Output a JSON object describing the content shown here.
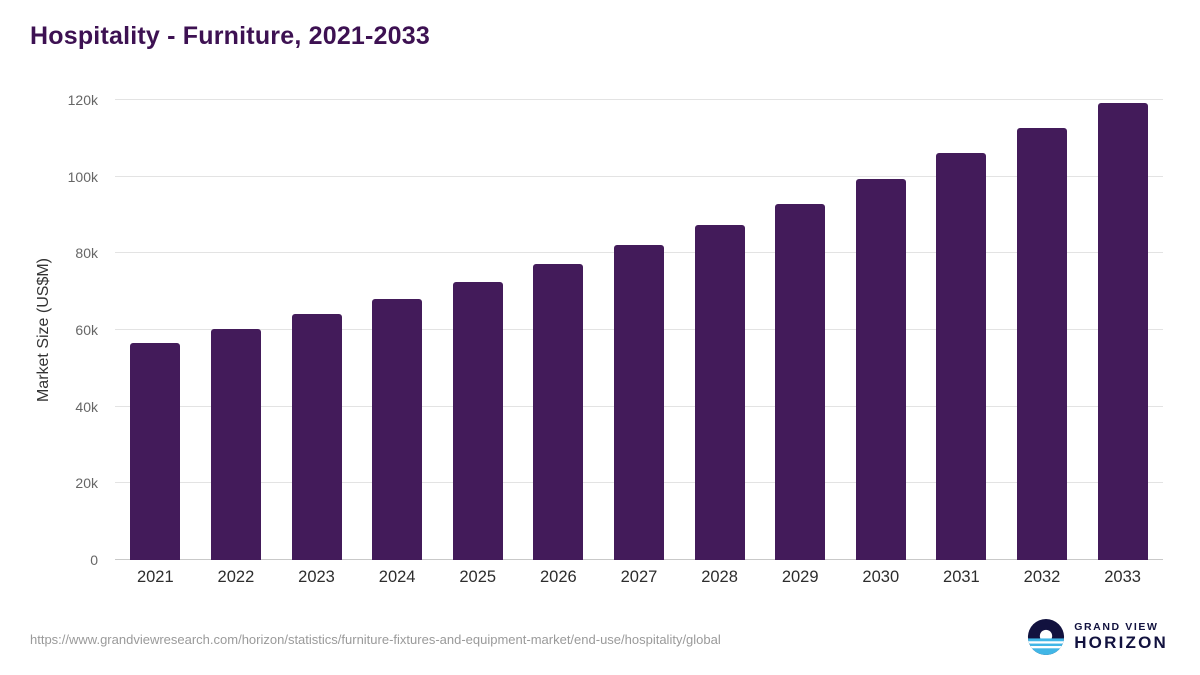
{
  "title": "Hospitality - Furniture, 2021-2033",
  "footer": {
    "source_url": "https://www.grandviewresearch.com/horizon/statistics/furniture-fixtures-and-equipment-market/end-use/hospitality/global",
    "logo": {
      "icon": "grand-view-horizon-logo-icon",
      "line1": "GRAND VIEW",
      "line2": "HORIZON"
    }
  },
  "colors": {
    "bar": "#431b5a",
    "title": "#3d1152",
    "grid": "#e3e3e3",
    "baseline": "#c9c9c9",
    "axis_text": "#666666",
    "x_label": "#2d2d2d",
    "footer_text": "#9a9a9a",
    "logo_navy": "#12123f",
    "logo_blue": "#41b6e6"
  },
  "chart_data": {
    "type": "bar",
    "title": "Hospitality - Furniture, 2021-2033",
    "xlabel": "",
    "ylabel": "Market Size (US$M)",
    "categories": [
      "2021",
      "2022",
      "2023",
      "2024",
      "2025",
      "2026",
      "2027",
      "2028",
      "2029",
      "2030",
      "2031",
      "2032",
      "2033"
    ],
    "values": [
      56500,
      60300,
      64100,
      68200,
      72500,
      77100,
      82100,
      87400,
      93000,
      99500,
      106200,
      112700,
      119300
    ],
    "ylim": [
      0,
      120000
    ],
    "ytick_step": 20000,
    "ytick_labels": [
      "0",
      "20k",
      "40k",
      "60k",
      "80k",
      "100k",
      "120k"
    ],
    "grid": "horizontal",
    "legend": "none"
  }
}
